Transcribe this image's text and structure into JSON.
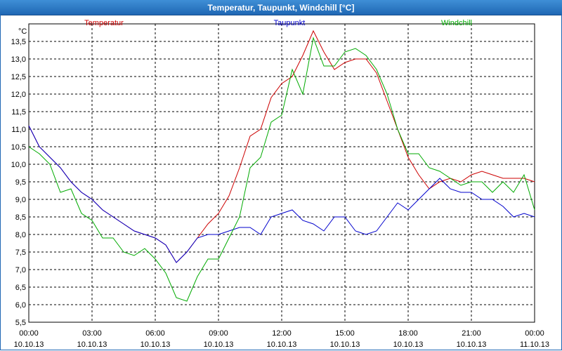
{
  "window": {
    "title": "Temperatur, Taupunkt, Windchill [°C]"
  },
  "chart_data": {
    "type": "line",
    "ylabel": "°C",
    "ylim": [
      5.5,
      14.0
    ],
    "y_ticks": [
      "5,5",
      "6,0",
      "6,5",
      "7,0",
      "7,5",
      "8,0",
      "8,5",
      "9,0",
      "9,5",
      "10,0",
      "10,5",
      "11,0",
      "11,5",
      "12,0",
      "12,5",
      "13,0",
      "13,5"
    ],
    "x_ticks": [
      {
        "time": "00:00",
        "date": "10.10.13"
      },
      {
        "time": "03:00",
        "date": "10.10.13"
      },
      {
        "time": "06:00",
        "date": "10.10.13"
      },
      {
        "time": "09:00",
        "date": "10.10.13"
      },
      {
        "time": "12:00",
        "date": "10.10.13"
      },
      {
        "time": "15:00",
        "date": "10.10.13"
      },
      {
        "time": "18:00",
        "date": "10.10.13"
      },
      {
        "time": "21:00",
        "date": "10.10.13"
      },
      {
        "time": "00:00",
        "date": "11.10.13"
      }
    ],
    "grid": true,
    "x": [
      0,
      0.5,
      1,
      1.5,
      2,
      2.5,
      3,
      3.5,
      4,
      4.5,
      5,
      5.5,
      6,
      6.5,
      7,
      7.5,
      8,
      8.5,
      9,
      9.5,
      10,
      10.5,
      11,
      11.5,
      12,
      12.5,
      13,
      13.5,
      14,
      14.5,
      15,
      15.5,
      16,
      16.5,
      17,
      17.5,
      18,
      18.5,
      19,
      19.5,
      20,
      20.5,
      21,
      21.5,
      22,
      22.5,
      23,
      23.5,
      24
    ],
    "series": [
      {
        "name": "Temperatur",
        "color": "#cc0000",
        "values": [
          11.1,
          10.5,
          10.2,
          9.9,
          9.5,
          9.2,
          9.0,
          8.7,
          8.5,
          8.3,
          8.1,
          8.0,
          7.9,
          7.7,
          7.2,
          7.5,
          7.9,
          8.3,
          8.6,
          9.1,
          9.9,
          10.8,
          11.0,
          11.9,
          12.3,
          12.5,
          13.1,
          13.8,
          13.2,
          12.7,
          12.9,
          13.0,
          13.0,
          12.6,
          11.8,
          11.0,
          10.2,
          9.7,
          9.3,
          9.5,
          9.6,
          9.5,
          9.7,
          9.8,
          9.7,
          9.6,
          9.6,
          9.6,
          9.5
        ]
      },
      {
        "name": "Taupunkt",
        "color": "#0000cc",
        "values": [
          11.1,
          10.5,
          10.2,
          9.9,
          9.5,
          9.2,
          9.0,
          8.7,
          8.5,
          8.3,
          8.1,
          8.0,
          7.9,
          7.7,
          7.2,
          7.5,
          7.9,
          8.0,
          8.0,
          8.1,
          8.2,
          8.2,
          8.0,
          8.5,
          8.6,
          8.7,
          8.4,
          8.3,
          8.1,
          8.5,
          8.5,
          8.1,
          8.0,
          8.1,
          8.5,
          8.9,
          8.7,
          9.0,
          9.3,
          9.6,
          9.3,
          9.2,
          9.2,
          9.0,
          9.0,
          8.8,
          8.5,
          8.6,
          8.5
        ]
      },
      {
        "name": "Windchill",
        "color": "#00aa00",
        "values": [
          10.5,
          10.3,
          10.0,
          9.2,
          9.3,
          8.6,
          8.4,
          7.9,
          7.9,
          7.5,
          7.4,
          7.6,
          7.3,
          6.9,
          6.2,
          6.1,
          6.8,
          7.3,
          7.3,
          7.9,
          8.5,
          9.9,
          10.2,
          11.2,
          11.4,
          12.7,
          12.0,
          13.6,
          12.8,
          12.8,
          13.2,
          13.3,
          13.1,
          12.7,
          12.0,
          11.0,
          10.3,
          10.3,
          9.9,
          9.8,
          9.6,
          9.4,
          9.5,
          9.5,
          9.2,
          9.5,
          9.2,
          9.7,
          8.7
        ]
      }
    ]
  }
}
